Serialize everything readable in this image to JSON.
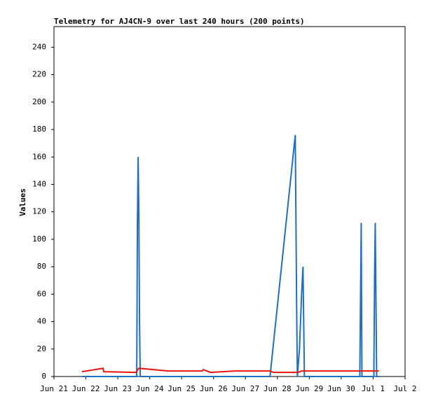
{
  "chart_data": {
    "type": "line",
    "title": "Telemetry for AJ4CN-9 over last 240 hours (200 points)",
    "y_label": "Values",
    "xlim": [
      0,
      11
    ],
    "xticks": [
      {
        "value": 0,
        "label": "Jun 21"
      },
      {
        "value": 1,
        "label": "Jun 22"
      },
      {
        "value": 2,
        "label": "Jun 23"
      },
      {
        "value": 3,
        "label": "Jun 24"
      },
      {
        "value": 4,
        "label": "Jun 25"
      },
      {
        "value": 5,
        "label": "Jun 26"
      },
      {
        "value": 6,
        "label": "Jun 27"
      },
      {
        "value": 7,
        "label": "Jun 28"
      },
      {
        "value": 8,
        "label": "Jun 29"
      },
      {
        "value": 9,
        "label": "Jun 30"
      },
      {
        "value": 10,
        "label": "Jul 1"
      },
      {
        "value": 11,
        "label": "Jul 2"
      }
    ],
    "ylim": [
      0,
      255
    ],
    "yticks": [
      0,
      20,
      40,
      60,
      80,
      100,
      120,
      140,
      160,
      180,
      200,
      220,
      240
    ],
    "series": [
      {
        "color": "#1f6fc0",
        "x": [
          0.879,
          2.593,
          2.615,
          2.637,
          2.659,
          2.681,
          2.703,
          6.769,
          7.56,
          7.604,
          7.626,
          7.692,
          7.758,
          7.802,
          7.824,
          7.846,
          9.582,
          9.604,
          9.626,
          9.648,
          10.022,
          10.044,
          10.066,
          10.088,
          10.11,
          10.176
        ],
        "values": [
          0,
          0,
          112,
          160,
          120,
          40,
          0,
          0,
          176,
          48,
          0,
          20,
          60,
          80,
          40,
          0,
          0,
          56,
          112,
          0,
          0,
          72,
          112,
          56,
          0,
          0
        ]
      },
      {
        "color": "#e8140e",
        "x": [
          0.879,
          1.538,
          1.56,
          2.571,
          2.659,
          3.582,
          4.637,
          4.681,
          4.901,
          5.67,
          6.769,
          6.879,
          7.648,
          7.758,
          10.176
        ],
        "values": [
          3.5,
          6,
          3.5,
          3,
          6,
          4,
          4,
          5,
          3,
          4,
          4,
          3,
          3,
          4,
          4
        ]
      }
    ]
  }
}
